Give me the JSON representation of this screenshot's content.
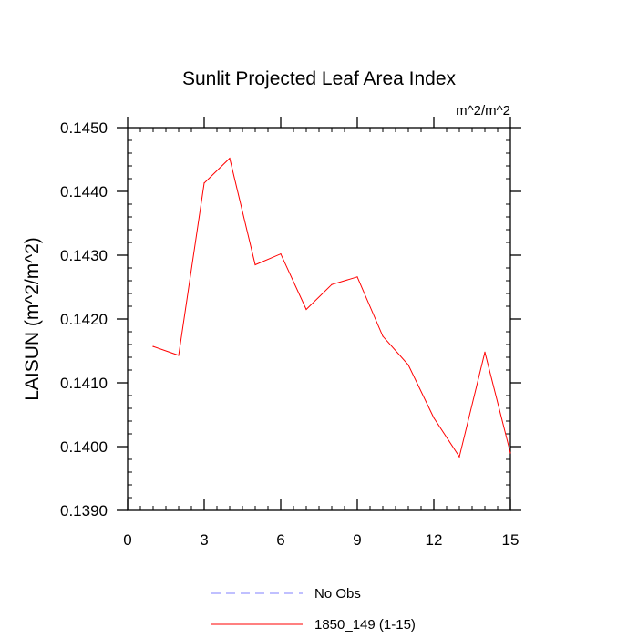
{
  "chart_data": {
    "type": "line",
    "title": "Sunlit Projected Leaf Area Index",
    "units_label": "m^2/m^2",
    "xlabel": "",
    "ylabel": "LAISUN  (m^2/m^2)",
    "xlim": [
      0,
      15
    ],
    "ylim": [
      0.139,
      0.145
    ],
    "x_ticks": [
      0,
      3,
      6,
      9,
      12,
      15
    ],
    "x_tick_labels": [
      "0",
      "3",
      "6",
      "9",
      "12",
      "15"
    ],
    "y_ticks": [
      0.139,
      0.14,
      0.141,
      0.142,
      0.143,
      0.144,
      0.145
    ],
    "y_tick_labels": [
      "0.1390",
      "0.1400",
      "0.1410",
      "0.1420",
      "0.1430",
      "0.1440",
      "0.1450"
    ],
    "legend_position": "bottom",
    "series": [
      {
        "name": "1850_149 (1-15)",
        "color": "#ff0000",
        "style": "solid",
        "x": [
          1,
          2,
          3,
          4,
          5,
          6,
          7,
          8,
          9,
          10,
          11,
          12,
          13,
          14,
          15
        ],
        "y": [
          0.14157,
          0.14143,
          0.14413,
          0.14452,
          0.14285,
          0.14302,
          0.14215,
          0.14254,
          0.14266,
          0.14173,
          0.14128,
          0.14045,
          0.13984,
          0.14148,
          0.1399
        ]
      }
    ],
    "legend": [
      {
        "label": "No Obs",
        "color": "#8080ff",
        "style": "dashed"
      },
      {
        "label": "1850_149 (1-15)",
        "color": "#ff0000",
        "style": "solid"
      }
    ]
  }
}
